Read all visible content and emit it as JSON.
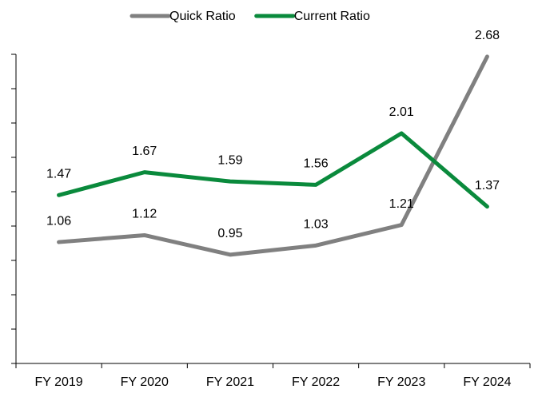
{
  "chart_data": {
    "type": "line",
    "categories": [
      "FY 2019",
      "FY 2020",
      "FY 2021",
      "FY 2022",
      "FY 2023",
      "FY 2024"
    ],
    "series": [
      {
        "name": "Quick Ratio",
        "color": "#808080",
        "values": [
          1.06,
          1.12,
          0.95,
          1.03,
          1.21,
          2.68
        ]
      },
      {
        "name": "Current Ratio",
        "color": "#0a8a3c",
        "values": [
          1.47,
          1.67,
          1.59,
          1.56,
          2.01,
          1.37
        ]
      }
    ],
    "ylim": [
      0,
      2.7
    ],
    "yticks": [
      0,
      0.3,
      0.6,
      0.9,
      1.2,
      1.5,
      1.8,
      2.1,
      2.4,
      2.7
    ],
    "legend": "top",
    "grid": false
  }
}
